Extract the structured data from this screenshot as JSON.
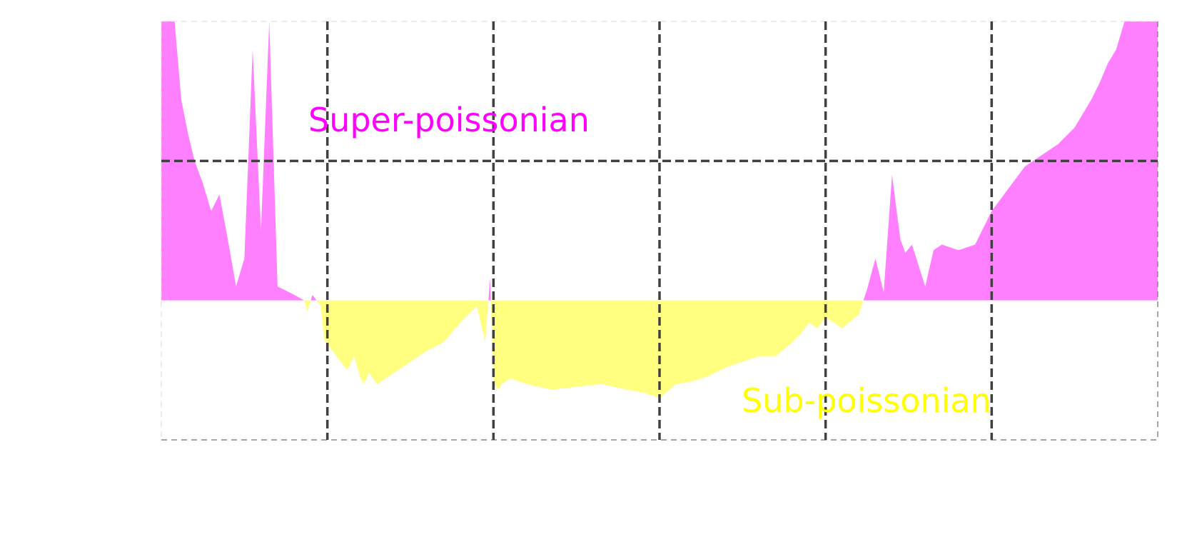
{
  "chart_data": {
    "type": "area",
    "title": "",
    "xlabel": "",
    "ylabel": "",
    "xlim": [
      0,
      6
    ],
    "ylim": [
      -0.5,
      1.0
    ],
    "grid": true,
    "x_gridlines": [
      1,
      2,
      3,
      4,
      5
    ],
    "y_gridlines": [
      0.5
    ],
    "baseline": 0,
    "annotations": {
      "super": "Super-poissonian",
      "sub": "Sub-poissonian"
    },
    "colors": {
      "super": "#ff80ff",
      "sub": "#ffff80",
      "super_text": "#ff00ff",
      "sub_text": "#ffff00",
      "grid": "#404040"
    },
    "series": [
      {
        "x": [
          0,
          0.08,
          0.12,
          0.16,
          0.2,
          0.25,
          0.3,
          0.35,
          0.4,
          0.45,
          0.5,
          0.55,
          0.6,
          0.65,
          0.7,
          0.8,
          0.86,
          0.88,
          0.91,
          0.96,
          0.98,
          1.03,
          1.08,
          1.12,
          1.16,
          1.2,
          1.22,
          1.25,
          1.3,
          1.4,
          1.5,
          1.6,
          1.7,
          1.8,
          1.9,
          1.95,
          1.98,
          2.0,
          2.03,
          2.05,
          2.1,
          2.2,
          2.35,
          2.5,
          2.65,
          2.8,
          2.9,
          3.0,
          3.1,
          3.2,
          3.3,
          3.4,
          3.5,
          3.6,
          3.7,
          3.8,
          3.85,
          3.9,
          3.95,
          4.0,
          4.1,
          4.2,
          4.25,
          4.3,
          4.35,
          4.4,
          4.45,
          4.48,
          4.52,
          4.6,
          4.65,
          4.7,
          4.8,
          4.9,
          5.0,
          5.1,
          5.2,
          5.3,
          5.4,
          5.5,
          5.6,
          5.65,
          5.7,
          5.75,
          5.8,
          5.85,
          6.0
        ],
        "y": [
          1.0,
          1.0,
          0.72,
          0.6,
          0.5,
          0.42,
          0.32,
          0.38,
          0.22,
          0.05,
          0.15,
          0.9,
          0.25,
          1.0,
          0.05,
          0.02,
          0.0,
          -0.04,
          0.02,
          -0.02,
          -0.14,
          -0.18,
          -0.22,
          -0.25,
          -0.2,
          -0.28,
          -0.3,
          -0.26,
          -0.3,
          -0.26,
          -0.22,
          -0.18,
          -0.15,
          -0.08,
          -0.02,
          -0.15,
          0.08,
          -0.3,
          -0.32,
          -0.3,
          -0.28,
          -0.3,
          -0.32,
          -0.31,
          -0.3,
          -0.32,
          -0.33,
          -0.35,
          -0.3,
          -0.29,
          -0.27,
          -0.24,
          -0.22,
          -0.2,
          -0.2,
          -0.15,
          -0.12,
          -0.08,
          -0.1,
          -0.06,
          -0.1,
          -0.05,
          0.04,
          0.15,
          0.03,
          0.45,
          0.22,
          0.17,
          0.2,
          0.05,
          0.18,
          0.2,
          0.18,
          0.2,
          0.32,
          0.4,
          0.48,
          0.52,
          0.56,
          0.62,
          0.72,
          0.78,
          0.85,
          0.9,
          1.0,
          1.0,
          1.0
        ]
      }
    ]
  }
}
